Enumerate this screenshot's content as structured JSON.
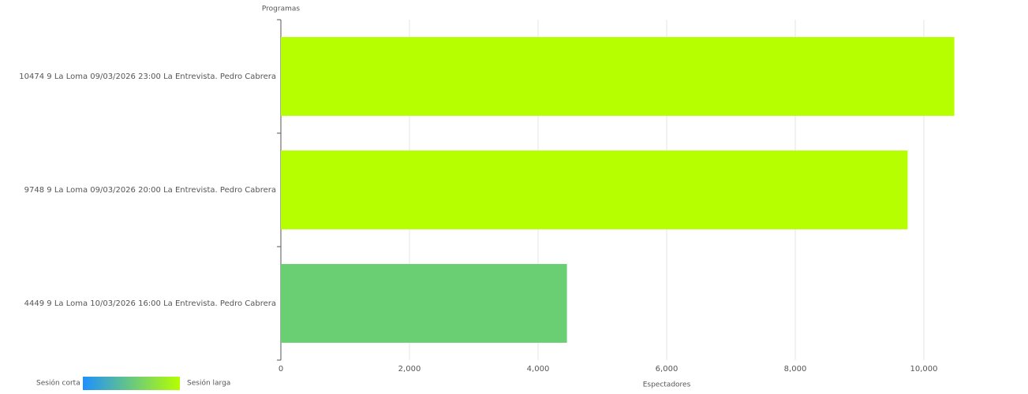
{
  "chart_data": {
    "type": "hbar",
    "y_axis_title": "Programas",
    "x_axis_title": "Espectadores",
    "categories": [
      "10474 9 La Loma 09/03/2026 23:00 La Entrevista. Pedro Cabrera",
      "9748 9 La Loma 09/03/2026 20:00 La Entrevista. Pedro Cabrera",
      "4449 9 La Loma 10/03/2026 16:00 La Entrevista. Pedro Cabrera"
    ],
    "values": [
      10474,
      9748,
      4449
    ],
    "colors": [
      "#b5ff00",
      "#b5ff00",
      "#6acf72"
    ],
    "xlim": [
      0,
      11500
    ],
    "xticks": [
      0,
      {
        "value": 2000,
        "label": "2,000"
      },
      {
        "value": 4000,
        "label": "4,000"
      },
      {
        "value": 6000,
        "label": "6,000"
      },
      {
        "value": 8000,
        "label": "8,000"
      },
      {
        "value": 10000,
        "label": "10,000"
      }
    ],
    "grid": true,
    "legend": {
      "min_label": "Sesión corta",
      "max_label": "Sesión larga",
      "colors": [
        "#1e90ff",
        "#b5ff00"
      ]
    }
  }
}
